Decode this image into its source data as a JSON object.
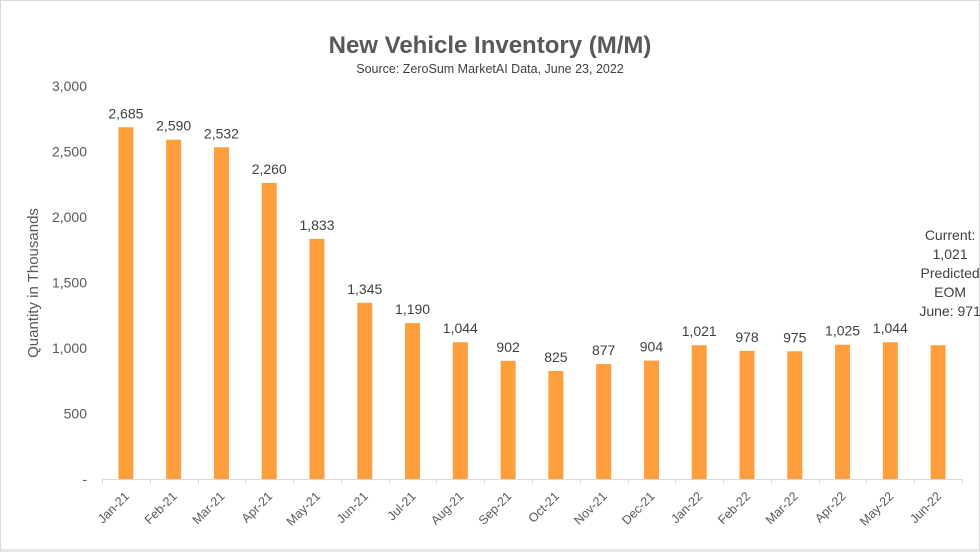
{
  "chart_data": {
    "type": "bar",
    "title": "New Vehicle Inventory (M/M)",
    "subtitle": "Source: ZeroSum MarketAI Data, June 23, 2022",
    "xlabel": "",
    "ylabel": "Quantity in Thousands",
    "ylim": [
      0,
      3000
    ],
    "yticks": [
      0,
      500,
      1000,
      1500,
      2000,
      2500,
      3000
    ],
    "ytick_labels": [
      "-",
      "500",
      "1,000",
      "1,500",
      "2,000",
      "2,500",
      "3,000"
    ],
    "grid": false,
    "legend": "none",
    "bar_color": "#FF9E3D",
    "categories": [
      "Jan-21",
      "Feb-21",
      "Mar-21",
      "Apr-21",
      "May-21",
      "Jun-21",
      "Jul-21",
      "Aug-21",
      "Sep-21",
      "Oct-21",
      "Nov-21",
      "Dec-21",
      "Jan-22",
      "Feb-22",
      "Mar-22",
      "Apr-22",
      "May-22",
      "Jun-22"
    ],
    "values": [
      2685,
      2590,
      2532,
      2260,
      1833,
      1345,
      1190,
      1044,
      902,
      825,
      877,
      904,
      1021,
      978,
      975,
      1025,
      1044,
      1021
    ],
    "data_labels": [
      "2,685",
      "2,590",
      "2,532",
      "2,260",
      "1,833",
      "1,345",
      "1,190",
      "1,044",
      "902",
      "825",
      "877",
      "904",
      "1,021",
      "978",
      "975",
      "1,025",
      "1,044",
      ""
    ],
    "annotation": {
      "category": "Jun-22",
      "lines": [
        "Current:",
        "1,021",
        "Predicted",
        "EOM",
        "June: 971"
      ]
    }
  }
}
